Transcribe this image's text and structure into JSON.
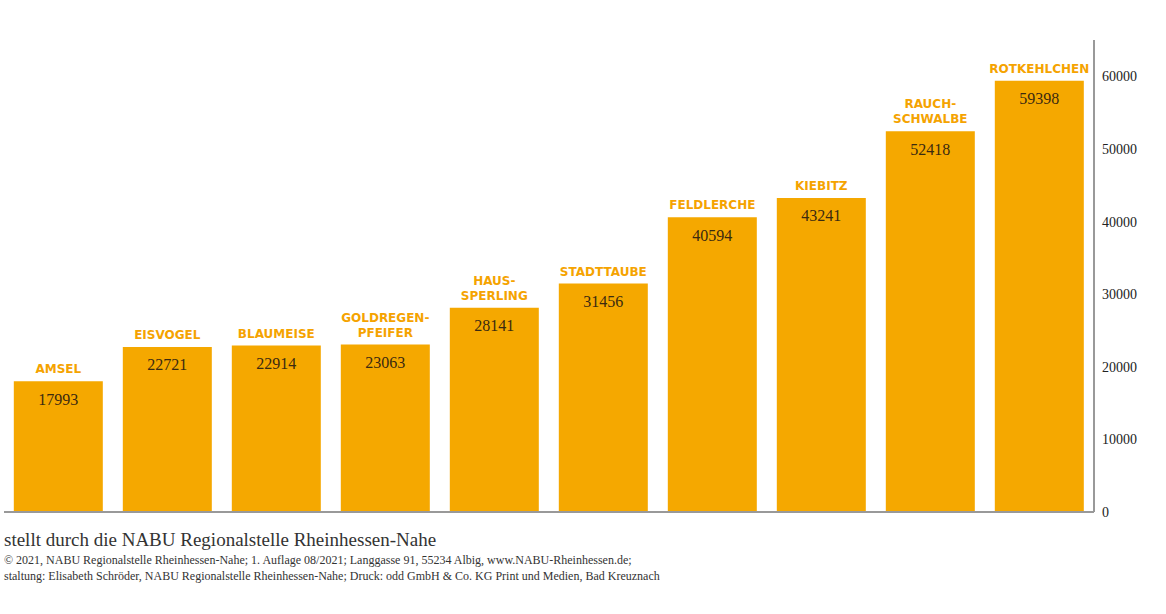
{
  "chart_data": {
    "type": "bar",
    "categories": [
      "AMSEL",
      "EISVOGEL",
      "BLAUMEISE",
      "GOLDREGEN-\nPFEIFER",
      "HAUS-\nSPERLING",
      "STADTTAUBE",
      "FELDLERCHE",
      "KIEBITZ",
      "RAUCH-\nSCHWALBE",
      "ROTKEHLCHEN"
    ],
    "values": [
      17993,
      22721,
      22914,
      23063,
      28141,
      31456,
      40594,
      43241,
      52418,
      59398
    ],
    "color": "#f5a800",
    "ylim": [
      0,
      65000
    ],
    "yticks": [
      0,
      10000,
      20000,
      30000,
      40000,
      50000,
      60000
    ],
    "grid": false,
    "data_labels": true,
    "tick_labels": "y"
  },
  "footer": [
    "stellt durch die NABU Regionalstelle Rheinhessen-Nahe",
    "© 2021, NABU Regionalstelle Rheinhessen-Nahe; 1. Auflage 08/2021; Langgasse 91, 55234 Albig, www.NABU-Rheinhessen.de;",
    "staltung: Elisabeth Schröder, NABU Regionalstelle Rheinhessen-Nahe; Druck: odd GmbH & Co. KG Print und Medien, Bad Kreuznach"
  ]
}
